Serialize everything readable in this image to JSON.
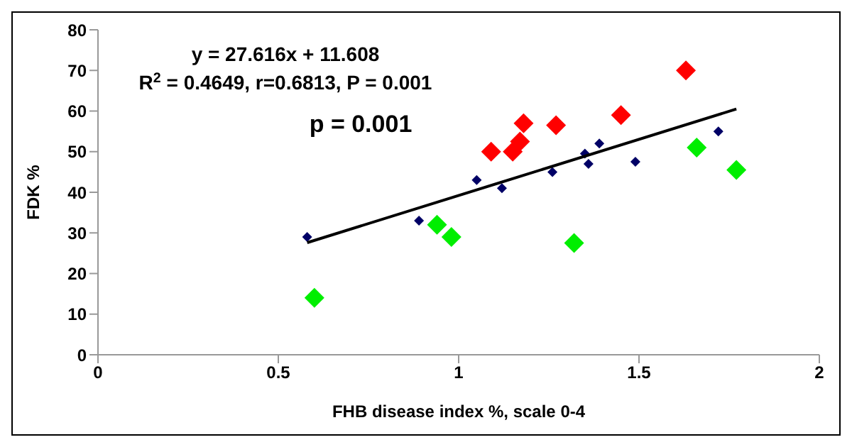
{
  "chart_data": {
    "type": "scatter",
    "xlabel": "FHB disease index %, scale 0-4",
    "ylabel": "FDK %",
    "annotations": [
      "y = 27.616x + 11.608",
      "R$^{2}$ = 0.4649, r=0.6813, P = 0.001",
      "p = 0.001"
    ],
    "xlim": [
      0,
      2
    ],
    "xticks": [
      0,
      0.5,
      1,
      1.5,
      2
    ],
    "ylim": [
      0,
      80
    ],
    "yticks": [
      0,
      10,
      20,
      30,
      40,
      50,
      60,
      70,
      80
    ],
    "marker": "diamond",
    "series": [
      {
        "color": "#000066",
        "x": [
          0.58,
          0.89,
          1.05,
          1.12,
          1.26,
          1.35,
          1.36,
          1.39,
          1.49,
          1.72
        ],
        "values": [
          29,
          33,
          43,
          41,
          45,
          49.5,
          47,
          52,
          47.5,
          55
        ]
      },
      {
        "color": "#ff0000",
        "x": [
          1.09,
          1.15,
          1.17,
          1.18,
          1.27,
          1.45,
          1.63
        ],
        "values": [
          50,
          50,
          52.5,
          57,
          56.5,
          59,
          70
        ]
      },
      {
        "color": "#00ee00",
        "x": [
          0.6,
          0.94,
          0.98,
          1.32,
          1.66,
          1.77
        ],
        "values": [
          14,
          32,
          29,
          27.5,
          51,
          45.5
        ]
      },
      {
        "type": "line",
        "color": "#000000",
        "line_style": "solid",
        "marker": "none",
        "x": [
          0.58,
          1.77
        ],
        "values": [
          27.6,
          60.5
        ]
      }
    ]
  }
}
